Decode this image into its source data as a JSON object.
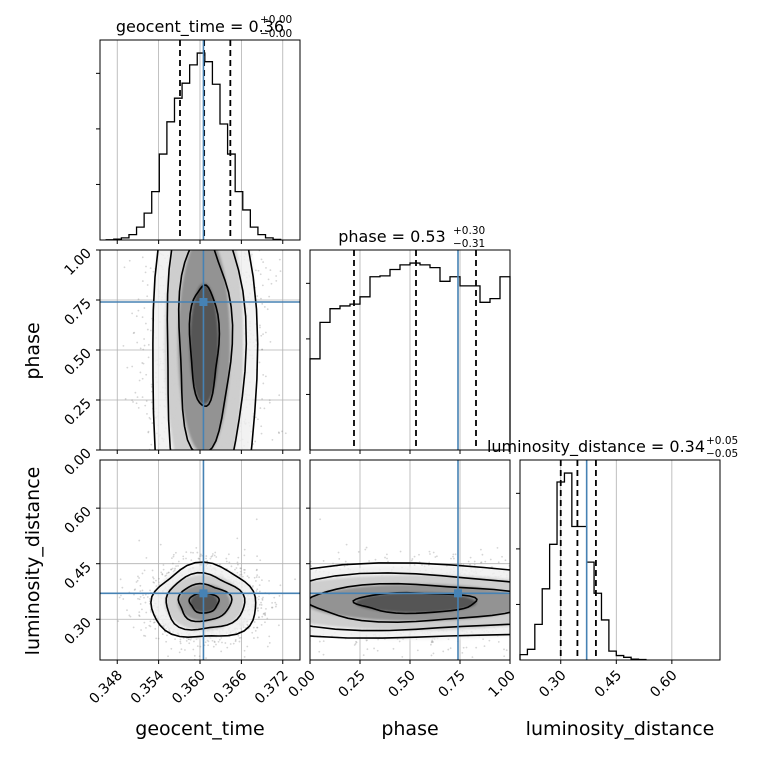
{
  "chart_data": {
    "type": "corner",
    "parameters": [
      {
        "name": "geocent_time",
        "axis_label": "geocent_time",
        "range": [
          0.3455,
          0.3745
        ],
        "ticks": [
          0.348,
          0.354,
          0.36,
          0.366,
          0.372
        ],
        "tick_labels": [
          "0.348",
          "0.354",
          "0.360",
          "0.366",
          "0.372"
        ],
        "title": "geocent_time = 0.36",
        "title_sup": "+0.00",
        "title_sub": "−0.00",
        "quantiles": [
          0.3571,
          0.3606,
          0.3644
        ],
        "truth": 0.3605,
        "histogram": {
          "bin_edges": [
            0.3464,
            0.3475,
            0.3486,
            0.3497,
            0.3508,
            0.3519,
            0.353,
            0.3541,
            0.3552,
            0.3563,
            0.3574,
            0.3585,
            0.3596,
            0.3607,
            0.3618,
            0.3629,
            0.364,
            0.3651,
            0.3662,
            0.3673,
            0.3684,
            0.3695,
            0.3706,
            0.3717
          ],
          "counts": [
            0.2,
            0.8,
            2,
            5,
            12,
            25,
            45,
            80,
            110,
            132,
            146,
            163,
            174,
            166,
            145,
            108,
            80,
            45,
            28,
            12,
            5,
            2,
            0.6
          ]
        }
      },
      {
        "name": "phase",
        "axis_label": "phase",
        "range": [
          0.0,
          1.0
        ],
        "ticks": [
          0.0,
          0.25,
          0.5,
          0.75,
          1.0
        ],
        "tick_labels": [
          "0.00",
          "0.25",
          "0.50",
          "0.75",
          "1.00"
        ],
        "title": "phase = 0.53",
        "title_sup": "+0.30",
        "title_sub": "−0.31",
        "quantiles": [
          0.22,
          0.53,
          0.83
        ],
        "truth": 0.74,
        "histogram": {
          "bin_edges": [
            0.0,
            0.05,
            0.1,
            0.15,
            0.2,
            0.25,
            0.3,
            0.35,
            0.4,
            0.45,
            0.5,
            0.55,
            0.6,
            0.65,
            0.7,
            0.75,
            0.8,
            0.85,
            0.9,
            0.95,
            1.0
          ],
          "counts": [
            100,
            140,
            155,
            158,
            160,
            168,
            190,
            191,
            198,
            203,
            205,
            203,
            200,
            185,
            190,
            180,
            180,
            162,
            166,
            190
          ]
        }
      },
      {
        "name": "luminosity_distance",
        "axis_label": "luminosity_distance",
        "range": [
          0.19,
          0.73
        ],
        "ticks": [
          0.3,
          0.45,
          0.6
        ],
        "tick_labels": [
          "0.30",
          "0.45",
          "0.60"
        ],
        "title": "luminosity_distance = 0.34",
        "title_sup": "+0.05",
        "title_sub": "−0.05",
        "quantiles": [
          0.3,
          0.345,
          0.395
        ],
        "truth": 0.37,
        "histogram": {
          "bin_edges": [
            0.19,
            0.21,
            0.23,
            0.25,
            0.27,
            0.29,
            0.31,
            0.33,
            0.35,
            0.37,
            0.39,
            0.41,
            0.43,
            0.45,
            0.47,
            0.49,
            0.51,
            0.53
          ],
          "counts": [
            6,
            12,
            40,
            80,
            130,
            200,
            210,
            150,
            150,
            110,
            75,
            45,
            10,
            5,
            3,
            1,
            0.5
          ]
        }
      }
    ],
    "contour_levels": [
      "0.5σ",
      "1σ",
      "1.5σ",
      "2σ"
    ],
    "truth_color": "#4682b4",
    "histogram_color": "#000000",
    "quantile_style": "dashed",
    "grid": true
  }
}
